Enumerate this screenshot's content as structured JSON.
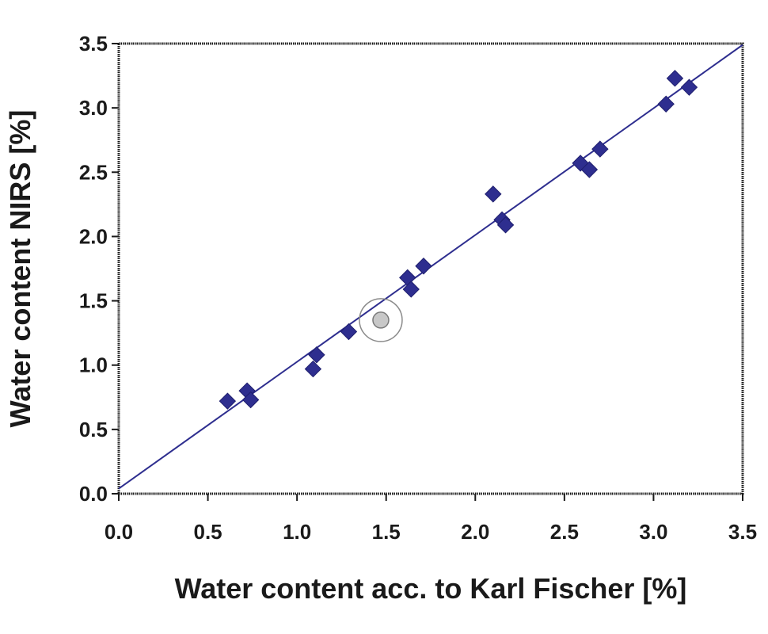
{
  "chart_data": {
    "type": "scatter",
    "title": "",
    "xlabel": "Water content acc. to Karl Fischer [%]",
    "ylabel": "Water content NIRS [%]",
    "xlim": [
      0.0,
      3.5
    ],
    "ylim": [
      0.0,
      3.5
    ],
    "x_ticks": [
      "0.0",
      "0.5",
      "1.0",
      "1.5",
      "2.0",
      "2.5",
      "3.0",
      "3.5"
    ],
    "y_ticks": [
      "0.0",
      "0.5",
      "1.0",
      "1.5",
      "2.0",
      "2.5",
      "3.0",
      "3.5"
    ],
    "grid": false,
    "legend": "none",
    "series": [
      {
        "marker": "diamond",
        "color": "#2e2e8f",
        "points": [
          [
            0.61,
            0.72
          ],
          [
            0.72,
            0.8
          ],
          [
            0.74,
            0.73
          ],
          [
            1.09,
            0.97
          ],
          [
            1.11,
            1.08
          ],
          [
            1.29,
            1.26
          ],
          [
            1.62,
            1.68
          ],
          [
            1.64,
            1.59
          ],
          [
            1.71,
            1.77
          ],
          [
            2.1,
            2.33
          ],
          [
            2.15,
            2.13
          ],
          [
            2.17,
            2.09
          ],
          [
            2.59,
            2.57
          ],
          [
            2.64,
            2.52
          ],
          [
            2.7,
            2.68
          ],
          [
            3.07,
            3.03
          ],
          [
            3.12,
            3.23
          ],
          [
            3.2,
            3.16
          ]
        ]
      }
    ],
    "fit_line": {
      "color": "#2e2e8f",
      "from": [
        0.0,
        0.04
      ],
      "to": [
        3.5,
        3.49
      ]
    },
    "highlight": {
      "x": 1.47,
      "y": 1.35
    }
  }
}
